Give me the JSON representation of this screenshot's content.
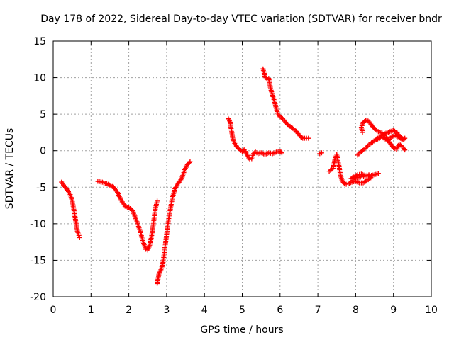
{
  "chart_data": {
    "type": "scatter",
    "title": "Day 178 of 2022, Sidereal Day-to-day VTEC variation (SDTVAR) for receiver bndr",
    "xlabel": "GPS time / hours",
    "ylabel": "SDTVAR / TECUs",
    "xlim": [
      0,
      10
    ],
    "ylim": [
      -20,
      15
    ],
    "x_ticks": [
      "0",
      "1",
      "2",
      "3",
      "4",
      "5",
      "6",
      "7",
      "8",
      "9",
      "10"
    ],
    "y_ticks": [
      "15",
      "10",
      "5",
      "0",
      "-5",
      "-10",
      "-15",
      "-20"
    ],
    "grid": true,
    "marker": "plus",
    "color": "#ff0000",
    "segments": [
      [
        [
          0.22,
          -4.3
        ],
        [
          0.3,
          -4.9
        ],
        [
          0.38,
          -5.4
        ],
        [
          0.45,
          -6.0
        ],
        [
          0.5,
          -6.8
        ],
        [
          0.55,
          -8.2
        ],
        [
          0.6,
          -9.8
        ],
        [
          0.64,
          -11.0
        ],
        [
          0.68,
          -11.6
        ],
        [
          0.7,
          -11.9
        ]
      ],
      [
        [
          1.18,
          -4.2
        ],
        [
          1.3,
          -4.3
        ],
        [
          1.45,
          -4.6
        ],
        [
          1.6,
          -5.0
        ],
        [
          1.7,
          -5.7
        ],
        [
          1.8,
          -6.8
        ],
        [
          1.9,
          -7.6
        ],
        [
          2.0,
          -7.8
        ],
        [
          2.1,
          -8.2
        ],
        [
          2.2,
          -9.5
        ],
        [
          2.3,
          -11.0
        ],
        [
          2.38,
          -12.5
        ],
        [
          2.45,
          -13.5
        ],
        [
          2.5,
          -13.6
        ],
        [
          2.55,
          -13.0
        ],
        [
          2.6,
          -11.8
        ],
        [
          2.65,
          -10.0
        ],
        [
          2.7,
          -8.0
        ],
        [
          2.75,
          -6.9
        ]
      ],
      [
        [
          2.75,
          -18.2
        ],
        [
          2.8,
          -16.8
        ],
        [
          2.85,
          -16.3
        ],
        [
          2.9,
          -15.5
        ],
        [
          2.95,
          -13.5
        ],
        [
          3.0,
          -11.5
        ],
        [
          3.05,
          -9.5
        ],
        [
          3.1,
          -8.0
        ],
        [
          3.15,
          -6.5
        ],
        [
          3.22,
          -5.2
        ],
        [
          3.3,
          -4.5
        ],
        [
          3.4,
          -3.8
        ],
        [
          3.48,
          -2.6
        ],
        [
          3.55,
          -1.9
        ],
        [
          3.62,
          -1.5
        ]
      ],
      [
        [
          4.63,
          4.4
        ],
        [
          4.68,
          3.9
        ],
        [
          4.72,
          2.6
        ],
        [
          4.76,
          1.4
        ],
        [
          4.82,
          0.8
        ],
        [
          4.9,
          0.3
        ],
        [
          5.0,
          -0.1
        ],
        [
          5.05,
          0.1
        ],
        [
          5.1,
          -0.3
        ],
        [
          5.15,
          -0.8
        ],
        [
          5.2,
          -1.2
        ],
        [
          5.25,
          -1.1
        ],
        [
          5.3,
          -0.4
        ],
        [
          5.35,
          -0.2
        ],
        [
          5.42,
          -0.4
        ],
        [
          5.5,
          -0.3
        ],
        [
          5.6,
          -0.5
        ],
        [
          5.7,
          -0.3
        ],
        [
          5.8,
          -0.4
        ],
        [
          5.9,
          -0.2
        ],
        [
          6.0,
          -0.1
        ],
        [
          6.05,
          -0.3
        ]
      ],
      [
        [
          5.55,
          11.2
        ],
        [
          5.6,
          10.2
        ],
        [
          5.65,
          9.8
        ],
        [
          5.7,
          9.9
        ],
        [
          5.75,
          8.5
        ],
        [
          5.8,
          7.6
        ],
        [
          5.85,
          6.8
        ],
        [
          5.9,
          5.8
        ],
        [
          5.95,
          4.9
        ],
        [
          6.0,
          4.7
        ],
        [
          6.1,
          4.2
        ],
        [
          6.2,
          3.6
        ],
        [
          6.3,
          3.2
        ],
        [
          6.4,
          2.8
        ],
        [
          6.5,
          2.2
        ],
        [
          6.55,
          1.9
        ],
        [
          6.6,
          1.7
        ],
        [
          6.7,
          1.7
        ],
        [
          6.75,
          1.7
        ]
      ],
      [
        [
          7.05,
          -0.4
        ],
        [
          7.1,
          -0.3
        ]
      ],
      [
        [
          7.3,
          -2.8
        ],
        [
          7.4,
          -2.4
        ],
        [
          7.45,
          -1.2
        ],
        [
          7.5,
          -0.5
        ],
        [
          7.55,
          -1.8
        ],
        [
          7.6,
          -3.4
        ],
        [
          7.65,
          -4.2
        ],
        [
          7.7,
          -4.5
        ],
        [
          7.75,
          -4.6
        ],
        [
          7.8,
          -4.5
        ],
        [
          7.9,
          -4.3
        ],
        [
          8.0,
          -4.2
        ],
        [
          8.1,
          -4.4
        ],
        [
          8.2,
          -4.4
        ],
        [
          8.3,
          -4.1
        ],
        [
          8.4,
          -3.7
        ],
        [
          8.35,
          -3.3
        ],
        [
          8.25,
          -3.4
        ],
        [
          8.15,
          -3.2
        ],
        [
          8.05,
          -3.3
        ],
        [
          7.95,
          -3.6
        ],
        [
          7.88,
          -3.8
        ],
        [
          8.5,
          -3.3
        ],
        [
          8.6,
          -3.1
        ]
      ],
      [
        [
          8.05,
          -0.6
        ],
        [
          8.15,
          -0.1
        ],
        [
          8.25,
          0.3
        ],
        [
          8.35,
          0.8
        ],
        [
          8.45,
          1.2
        ],
        [
          8.55,
          1.6
        ],
        [
          8.65,
          1.9
        ],
        [
          8.7,
          2.1
        ],
        [
          8.8,
          2.4
        ],
        [
          8.9,
          2.6
        ],
        [
          9.0,
          2.8
        ],
        [
          9.1,
          2.4
        ],
        [
          9.2,
          1.7
        ],
        [
          9.28,
          1.6
        ]
      ],
      [
        [
          8.18,
          2.5
        ],
        [
          8.15,
          3.2
        ],
        [
          8.2,
          3.9
        ],
        [
          8.3,
          4.2
        ],
        [
          8.38,
          3.8
        ],
        [
          8.45,
          3.3
        ],
        [
          8.52,
          2.9
        ],
        [
          8.6,
          2.6
        ],
        [
          8.7,
          2.4
        ],
        [
          8.8,
          1.9
        ],
        [
          8.88,
          1.2
        ],
        [
          8.95,
          0.8
        ],
        [
          9.0,
          0.4
        ],
        [
          9.08,
          0.2
        ],
        [
          9.15,
          0.9
        ],
        [
          9.25,
          0.5
        ],
        [
          9.3,
          0.1
        ]
      ],
      [
        [
          8.55,
          1.5
        ],
        [
          8.65,
          1.8
        ],
        [
          8.75,
          1.7
        ],
        [
          8.85,
          1.4
        ],
        [
          8.95,
          1.9
        ],
        [
          9.05,
          2.1
        ],
        [
          9.15,
          1.8
        ],
        [
          9.25,
          1.5
        ],
        [
          9.3,
          1.7
        ]
      ]
    ]
  }
}
